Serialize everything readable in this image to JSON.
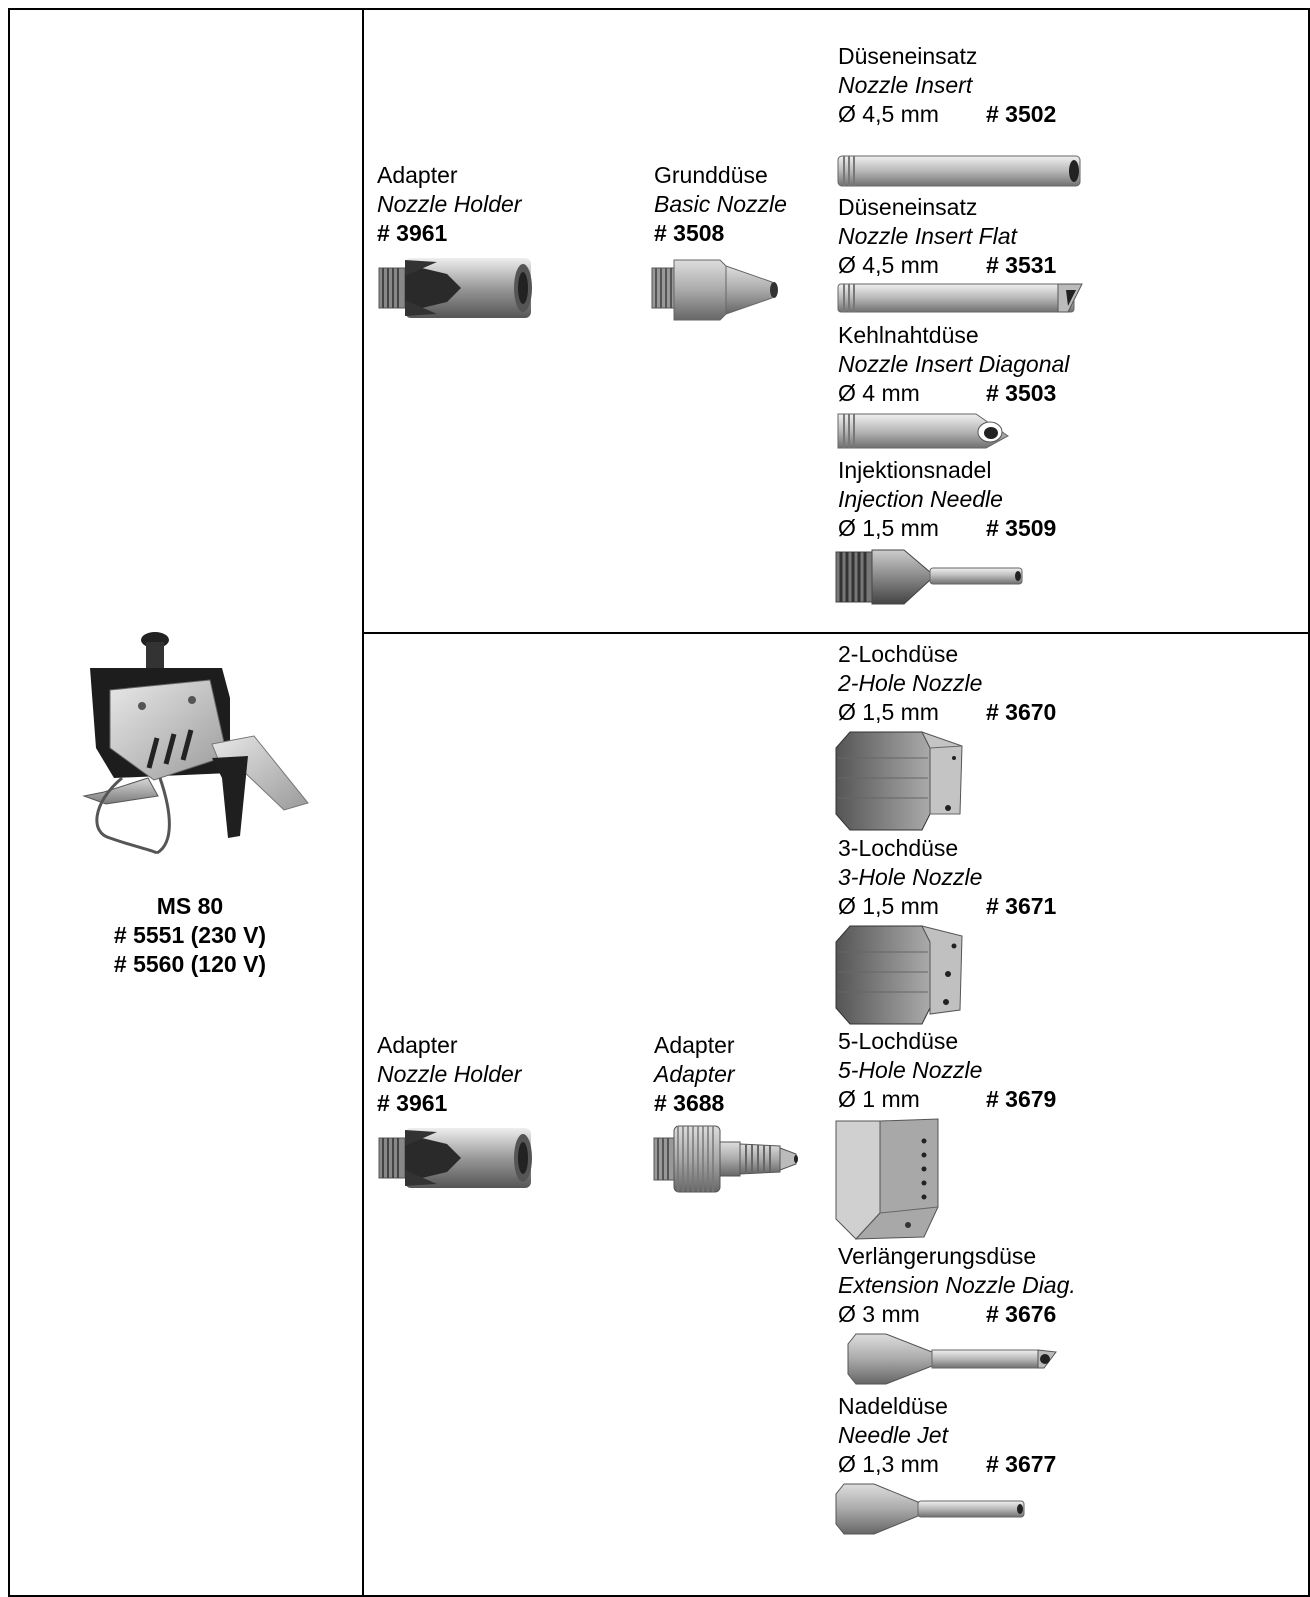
{
  "main_product": {
    "name": "MS 80",
    "variant_1": "# 5551 (230 V)",
    "variant_2": "# 5560 (120 V)"
  },
  "section_top": {
    "adapter": {
      "de": "Adapter",
      "en": "Nozzle Holder",
      "code": "# 3961"
    },
    "basic": {
      "de": "Grunddüse",
      "en": "Basic Nozzle",
      "code": "# 3508"
    },
    "inserts": [
      {
        "de": "Düseneinsatz",
        "en": "Nozzle Insert",
        "dia": "Ø 4,5 mm",
        "code": "# 3502"
      },
      {
        "de": "Düseneinsatz",
        "en": "Nozzle Insert Flat",
        "dia": "Ø 4,5 mm",
        "code": "# 3531"
      },
      {
        "de": "Kehlnahtdüse",
        "en": "Nozzle Insert Diagonal",
        "dia": "Ø  4 mm",
        "code": "# 3503"
      },
      {
        "de": "Injektionsnadel",
        "en": "Injection Needle",
        "dia": "Ø 1,5 mm",
        "code": "# 3509"
      }
    ]
  },
  "section_bottom": {
    "adapter": {
      "de": "Adapter",
      "en": "Nozzle Holder",
      "code": "# 3961"
    },
    "adapter2": {
      "de": "Adapter",
      "en": "Adapter",
      "code": "# 3688"
    },
    "nozzles": [
      {
        "de": "2-Lochdüse",
        "en": "2-Hole Nozzle",
        "dia": "Ø 1,5 mm",
        "code": "# 3670"
      },
      {
        "de": "3-Lochdüse",
        "en": "3-Hole Nozzle",
        "dia": "Ø 1,5 mm",
        "code": "# 3671"
      },
      {
        "de": "5-Lochdüse",
        "en": "5-Hole Nozzle",
        "dia": "Ø 1 mm",
        "code": "# 3679"
      },
      {
        "de": "Verlängerungsdüse",
        "en": "Extension Nozzle Diag.",
        "dia": "Ø 3 mm",
        "code": "# 3676"
      },
      {
        "de": "Nadeldüse",
        "en": "Needle Jet",
        "dia": "Ø 1,3 mm",
        "code": "# 3677"
      }
    ]
  }
}
